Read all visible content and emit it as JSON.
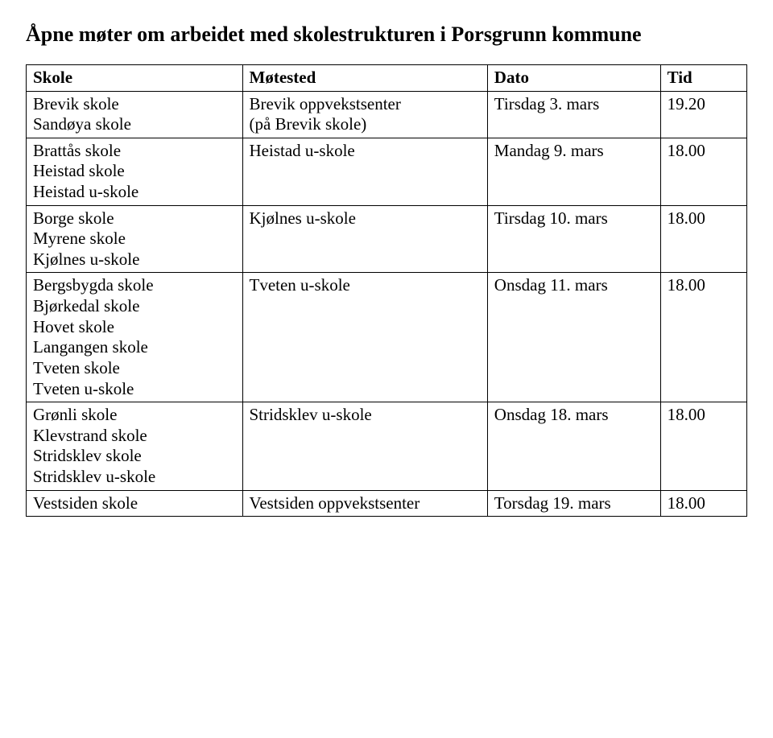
{
  "title": "Åpne møter om arbeidet med skolestrukturen i Porsgrunn kommune",
  "columns": [
    "Skole",
    "Møtested",
    "Dato",
    "Tid"
  ],
  "rows": [
    {
      "skole": "Brevik skole\nSandøya skole",
      "motested": "Brevik oppvekstsenter\n(på Brevik skole)",
      "dato": "Tirsdag 3. mars",
      "tid": "19.20"
    },
    {
      "skole": "Brattås skole\nHeistad skole\nHeistad u-skole",
      "motested": "Heistad u-skole",
      "dato": "Mandag 9. mars",
      "tid": "18.00"
    },
    {
      "skole": "Borge skole\nMyrene skole\nKjølnes u-skole",
      "motested": "Kjølnes u-skole",
      "dato": "Tirsdag 10. mars",
      "tid": "18.00"
    },
    {
      "skole": "Bergsbygda skole\nBjørkedal skole\nHovet skole\nLangangen skole\nTveten skole\nTveten u-skole",
      "motested": "Tveten u-skole",
      "dato": "Onsdag 11. mars",
      "tid": "18.00"
    },
    {
      "skole": "Grønli skole\nKlevstrand skole\nStridsklev skole\nStridsklev u-skole",
      "motested": "Stridsklev u-skole",
      "dato": "Onsdag 18. mars",
      "tid": "18.00"
    },
    {
      "skole": "Vestsiden skole",
      "motested": "Vestsiden oppvekstsenter",
      "dato": "Torsdag 19. mars",
      "tid": "18.00"
    }
  ]
}
